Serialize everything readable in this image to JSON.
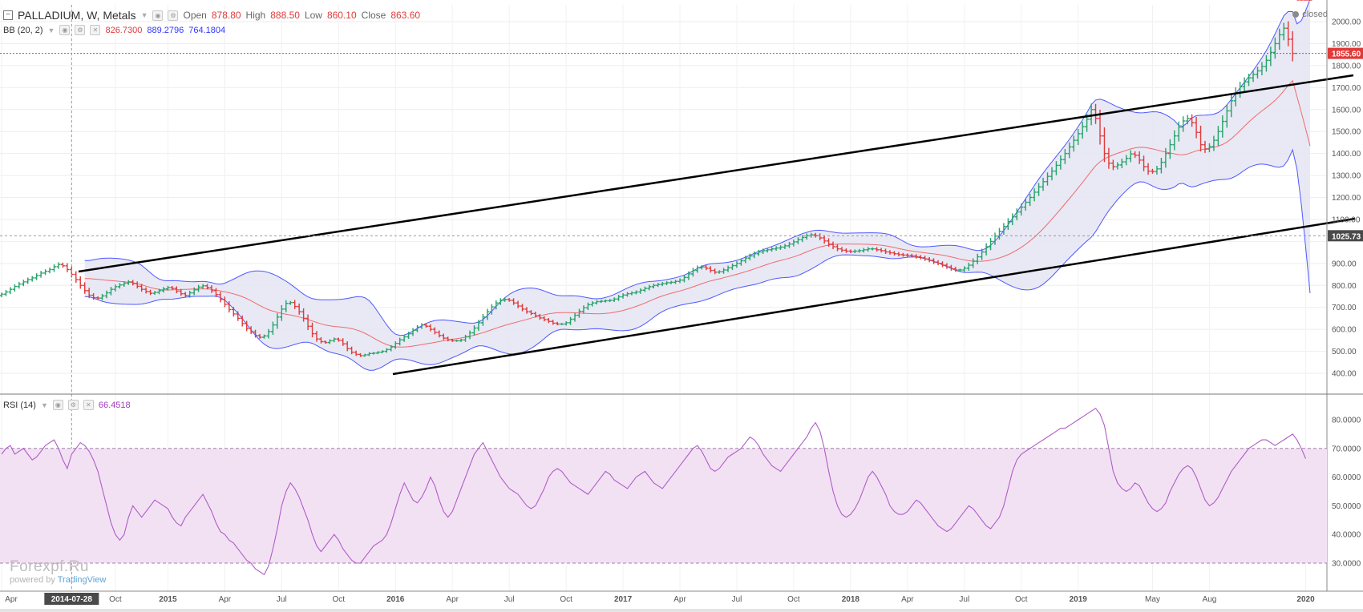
{
  "header": {
    "symbol": "PALLADIUM, W, Metals",
    "open_label": "Open",
    "open": "878.80",
    "high_label": "High",
    "high": "888.50",
    "low_label": "Low",
    "low": "860.10",
    "close_label": "Close",
    "close": "863.60",
    "status": "closed"
  },
  "bb_legend": {
    "label": "BB (20, 2)",
    "basis": "826.7300",
    "upper": "889.2796",
    "lower": "764.1804"
  },
  "rsi_legend": {
    "label": "RSI (14)",
    "value": "66.4518"
  },
  "watermark": {
    "main": "Forexpf.Ru",
    "powered": "powered by",
    "brand": "TradingView"
  },
  "colors": {
    "up": "#26a269",
    "down": "#e03a3a",
    "band_fill": "#e4e5f3",
    "band_line": "#4f57ff",
    "basis": "#ef6b6b",
    "rsi": "#b05cc8",
    "rsi_band": "#f2e1f3",
    "trendline": "#000000"
  },
  "chart_data": [
    {
      "type": "candlestick",
      "title": "PALLADIUM, W, Metals",
      "price_ticks": [
        "400.00",
        "500.00",
        "600.00",
        "700.00",
        "800.00",
        "900.00",
        "1000.00",
        "1100.00",
        "1200.00",
        "1300.00",
        "1400.00",
        "1500.00",
        "1600.00",
        "1700.00",
        "1800.00",
        "1900.00",
        "2000.00"
      ],
      "ylim": [
        350,
        2080
      ],
      "x_labels": [
        "Apr",
        "2014-07-28",
        "Oct",
        "2015",
        "Apr",
        "Jul",
        "Oct",
        "2016",
        "Apr",
        "Jul",
        "Oct",
        "2017",
        "Apr",
        "Jul",
        "Oct",
        "2018",
        "Apr",
        "Jul",
        "Oct",
        "2019",
        "May",
        "Aug",
        "2020"
      ],
      "x_label_positions": [
        0,
        16,
        26,
        38,
        51,
        64,
        77,
        90,
        103,
        116,
        129,
        142,
        155,
        168,
        181,
        194,
        207,
        220,
        233,
        246,
        263,
        276,
        298
      ],
      "weeks": 300,
      "closes": [
        760,
        770,
        782,
        795,
        806,
        816,
        826,
        834,
        845,
        856,
        864,
        872,
        885,
        895,
        889,
        872,
        850,
        826,
        800,
        776,
        755,
        744,
        742,
        752,
        766,
        782,
        794,
        802,
        810,
        816,
        808,
        796,
        782,
        772,
        764,
        768,
        776,
        784,
        790,
        786,
        774,
        762,
        754,
        766,
        780,
        792,
        798,
        790,
        776,
        758,
        736,
        714,
        690,
        670,
        650,
        626,
        604,
        588,
        572,
        564,
        570,
        590,
        620,
        656,
        692,
        718,
        722,
        704,
        680,
        650,
        614,
        580,
        556,
        544,
        540,
        548,
        556,
        550,
        534,
        512,
        496,
        486,
        480,
        484,
        490,
        492,
        496,
        500,
        508,
        520,
        536,
        552,
        566,
        580,
        596,
        610,
        620,
        614,
        600,
        586,
        572,
        560,
        552,
        548,
        548,
        552,
        566,
        584,
        606,
        630,
        656,
        680,
        702,
        720,
        732,
        736,
        732,
        720,
        706,
        692,
        680,
        672,
        662,
        652,
        644,
        636,
        628,
        624,
        624,
        630,
        646,
        664,
        682,
        698,
        712,
        720,
        726,
        728,
        730,
        732,
        738,
        748,
        756,
        762,
        766,
        770,
        778,
        786,
        794,
        800,
        804,
        808,
        812,
        814,
        818,
        824,
        836,
        852,
        868,
        880,
        884,
        878,
        868,
        860,
        862,
        870,
        880,
        890,
        900,
        912,
        924,
        934,
        944,
        952,
        958,
        962,
        966,
        970,
        974,
        980,
        988,
        998,
        1008,
        1018,
        1026,
        1030,
        1026,
        1016,
        1002,
        988,
        976,
        966,
        960,
        956,
        954,
        956,
        958,
        962,
        966,
        966,
        962,
        958,
        952,
        948,
        944,
        940,
        938,
        936,
        934,
        930,
        926,
        920,
        914,
        906,
        900,
        892,
        884,
        876,
        870,
        870,
        878,
        892,
        910,
        930,
        952,
        976,
        1000,
        1024,
        1046,
        1068,
        1090,
        1112,
        1134,
        1156,
        1178,
        1200,
        1224,
        1248,
        1272,
        1296,
        1320,
        1346,
        1372,
        1400,
        1430,
        1460,
        1490,
        1522,
        1556,
        1600,
        1560,
        1480,
        1400,
        1356,
        1340,
        1348,
        1362,
        1378,
        1398,
        1392,
        1370,
        1340,
        1320,
        1318,
        1330,
        1360,
        1400,
        1440,
        1480,
        1520,
        1548,
        1560,
        1540,
        1496,
        1440,
        1420,
        1432,
        1460,
        1500,
        1546,
        1594,
        1640,
        1676,
        1704,
        1726,
        1744,
        1760,
        1776,
        1796,
        1824,
        1860,
        1900,
        1940,
        1970,
        1920,
        1855.6
      ],
      "current_price_label": "1855.60",
      "crosshair_price_label": "1025.73",
      "bollinger": {
        "period": 20,
        "mult": 2
      }
    },
    {
      "type": "line",
      "title": "RSI (14)",
      "ticks": [
        "30.0000",
        "40.0000",
        "50.0000",
        "60.0000",
        "70.0000",
        "80.0000"
      ],
      "ylim": [
        22,
        88
      ],
      "band": [
        30,
        70
      ],
      "values": [
        68,
        70,
        71,
        68,
        69,
        70,
        68,
        66,
        67,
        69,
        71,
        72,
        73,
        70,
        66,
        63,
        68,
        70,
        72,
        71,
        69,
        66,
        62,
        56,
        50,
        44,
        40,
        38,
        40,
        46,
        50,
        48,
        46,
        48,
        50,
        52,
        51,
        50,
        49,
        46,
        44,
        43,
        46,
        48,
        50,
        52,
        54,
        51,
        48,
        44,
        41,
        40,
        38,
        37,
        35,
        33,
        31,
        30,
        28,
        27,
        26,
        29,
        35,
        42,
        50,
        55,
        58,
        56,
        53,
        49,
        45,
        40,
        36,
        34,
        36,
        38,
        40,
        38,
        35,
        33,
        31,
        30,
        30,
        32,
        34,
        36,
        37,
        38,
        40,
        44,
        49,
        54,
        58,
        55,
        52,
        51,
        53,
        56,
        60,
        57,
        52,
        48,
        46,
        48,
        52,
        56,
        60,
        64,
        68,
        70,
        72,
        69,
        66,
        63,
        60,
        58,
        56,
        55,
        54,
        52,
        50,
        49,
        50,
        53,
        56,
        60,
        62,
        63,
        62,
        60,
        58,
        57,
        56,
        55,
        54,
        56,
        58,
        60,
        62,
        61,
        59,
        58,
        57,
        56,
        58,
        60,
        61,
        62,
        60,
        58,
        57,
        56,
        58,
        60,
        62,
        64,
        66,
        68,
        70,
        71,
        69,
        66,
        63,
        62,
        63,
        65,
        67,
        68,
        69,
        70,
        72,
        74,
        73,
        71,
        68,
        66,
        64,
        63,
        62,
        64,
        66,
        68,
        70,
        72,
        74,
        77,
        79,
        76,
        70,
        62,
        55,
        50,
        47,
        46,
        47,
        49,
        52,
        56,
        60,
        62,
        60,
        57,
        54,
        50,
        48,
        47,
        47,
        48,
        50,
        52,
        51,
        49,
        47,
        45,
        43,
        42,
        41,
        42,
        44,
        46,
        48,
        50,
        49,
        47,
        45,
        43,
        42,
        44,
        46,
        50,
        56,
        62,
        66,
        68,
        69,
        70,
        71,
        72,
        73,
        74,
        75,
        76,
        77,
        77,
        78,
        79,
        80,
        81,
        82,
        83,
        84,
        82,
        78,
        70,
        62,
        58,
        56,
        55,
        56,
        58,
        57,
        54,
        51,
        49,
        48,
        49,
        51,
        55,
        58,
        61,
        63,
        64,
        63,
        60,
        56,
        52,
        50,
        51,
        53,
        56,
        59,
        62,
        64,
        66,
        68,
        70,
        71,
        72,
        73,
        73,
        72,
        71,
        72,
        73,
        74,
        75,
        73,
        70,
        66.45
      ]
    }
  ]
}
